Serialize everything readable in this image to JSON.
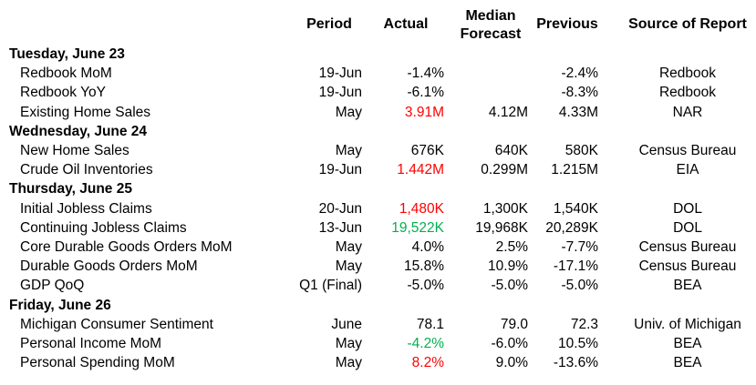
{
  "headers": {
    "period": "Period",
    "actual": "Actual",
    "forecast_line1": "Median",
    "forecast_line2": "Forecast",
    "previous": "Previous",
    "source": "Source of Report"
  },
  "days": [
    {
      "label": "Tuesday, June 23",
      "rows": [
        {
          "indicator": "Redbook MoM",
          "period": "19-Jun",
          "actual": "-1.4%",
          "actual_color": "",
          "forecast": "",
          "previous": "-2.4%",
          "source": "Redbook"
        },
        {
          "indicator": "Redbook YoY",
          "period": "19-Jun",
          "actual": "-6.1%",
          "actual_color": "",
          "forecast": "",
          "previous": "-8.3%",
          "source": "Redbook"
        },
        {
          "indicator": "Existing Home Sales",
          "period": "May",
          "actual": "3.91M",
          "actual_color": "red",
          "forecast": "4.12M",
          "previous": "4.33M",
          "source": "NAR"
        }
      ]
    },
    {
      "label": "Wednesday, June 24",
      "rows": [
        {
          "indicator": "New Home Sales",
          "period": "May",
          "actual": "676K",
          "actual_color": "",
          "forecast": "640K",
          "previous": "580K",
          "source": "Census Bureau"
        },
        {
          "indicator": "Crude Oil Inventories",
          "period": "19-Jun",
          "actual": "1.442M",
          "actual_color": "red",
          "forecast": "0.299M",
          "previous": "1.215M",
          "source": "EIA"
        }
      ]
    },
    {
      "label": "Thursday, June 25",
      "rows": [
        {
          "indicator": "Initial Jobless Claims",
          "period": "20-Jun",
          "actual": "1,480K",
          "actual_color": "red",
          "forecast": "1,300K",
          "previous": "1,540K",
          "source": "DOL"
        },
        {
          "indicator": "Continuing Jobless Claims",
          "period": "13-Jun",
          "actual": "19,522K",
          "actual_color": "green",
          "forecast": "19,968K",
          "previous": "20,289K",
          "source": "DOL"
        },
        {
          "indicator": "Core Durable Goods Orders MoM",
          "period": "May",
          "actual": "4.0%",
          "actual_color": "",
          "forecast": "2.5%",
          "previous": "-7.7%",
          "source": "Census Bureau"
        },
        {
          "indicator": "Durable Goods Orders MoM",
          "period": "May",
          "actual": "15.8%",
          "actual_color": "",
          "forecast": "10.9%",
          "previous": "-17.1%",
          "source": "Census Bureau"
        },
        {
          "indicator": "GDP QoQ",
          "period": "Q1 (Final)",
          "actual": "-5.0%",
          "actual_color": "",
          "forecast": "-5.0%",
          "previous": "-5.0%",
          "source": "BEA"
        }
      ]
    },
    {
      "label": "Friday, June 26",
      "rows": [
        {
          "indicator": "Michigan Consumer Sentiment",
          "period": "June",
          "actual": "78.1",
          "actual_color": "",
          "forecast": "79.0",
          "previous": "72.3",
          "source": "Univ. of Michigan"
        },
        {
          "indicator": "Personal Income MoM",
          "period": "May",
          "actual": "-4.2%",
          "actual_color": "green",
          "forecast": "-6.0%",
          "previous": "10.5%",
          "source": "BEA"
        },
        {
          "indicator": "Personal Spending MoM",
          "period": "May",
          "actual": "8.2%",
          "actual_color": "red",
          "forecast": "9.0%",
          "previous": "-13.6%",
          "source": "BEA"
        }
      ]
    }
  ]
}
